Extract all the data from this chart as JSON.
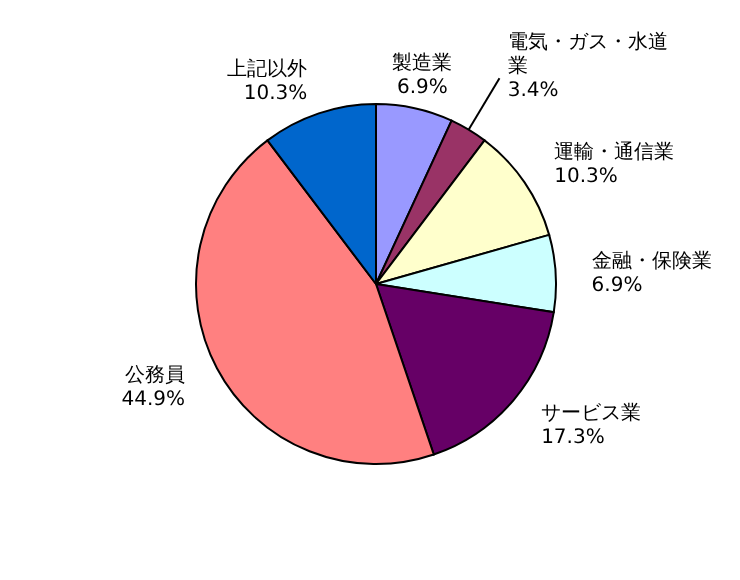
{
  "chart_data": {
    "type": "pie",
    "categories": [
      "製造業",
      "電気・ガス・水道業",
      "運輸・通信業",
      "金融・保険業",
      "サービス業",
      "公務員",
      "上記以外"
    ],
    "values": [
      6.9,
      3.4,
      10.3,
      6.9,
      17.3,
      44.9,
      10.3
    ],
    "value_labels": [
      "6.9%",
      "3.4%",
      "10.3%",
      "6.9%",
      "17.3%",
      "44.9%",
      "10.3%"
    ],
    "colors": [
      "#9999ff",
      "#993366",
      "#ffffcc",
      "#ccffff",
      "#660066",
      "#ff8080",
      "#0066cc"
    ]
  }
}
